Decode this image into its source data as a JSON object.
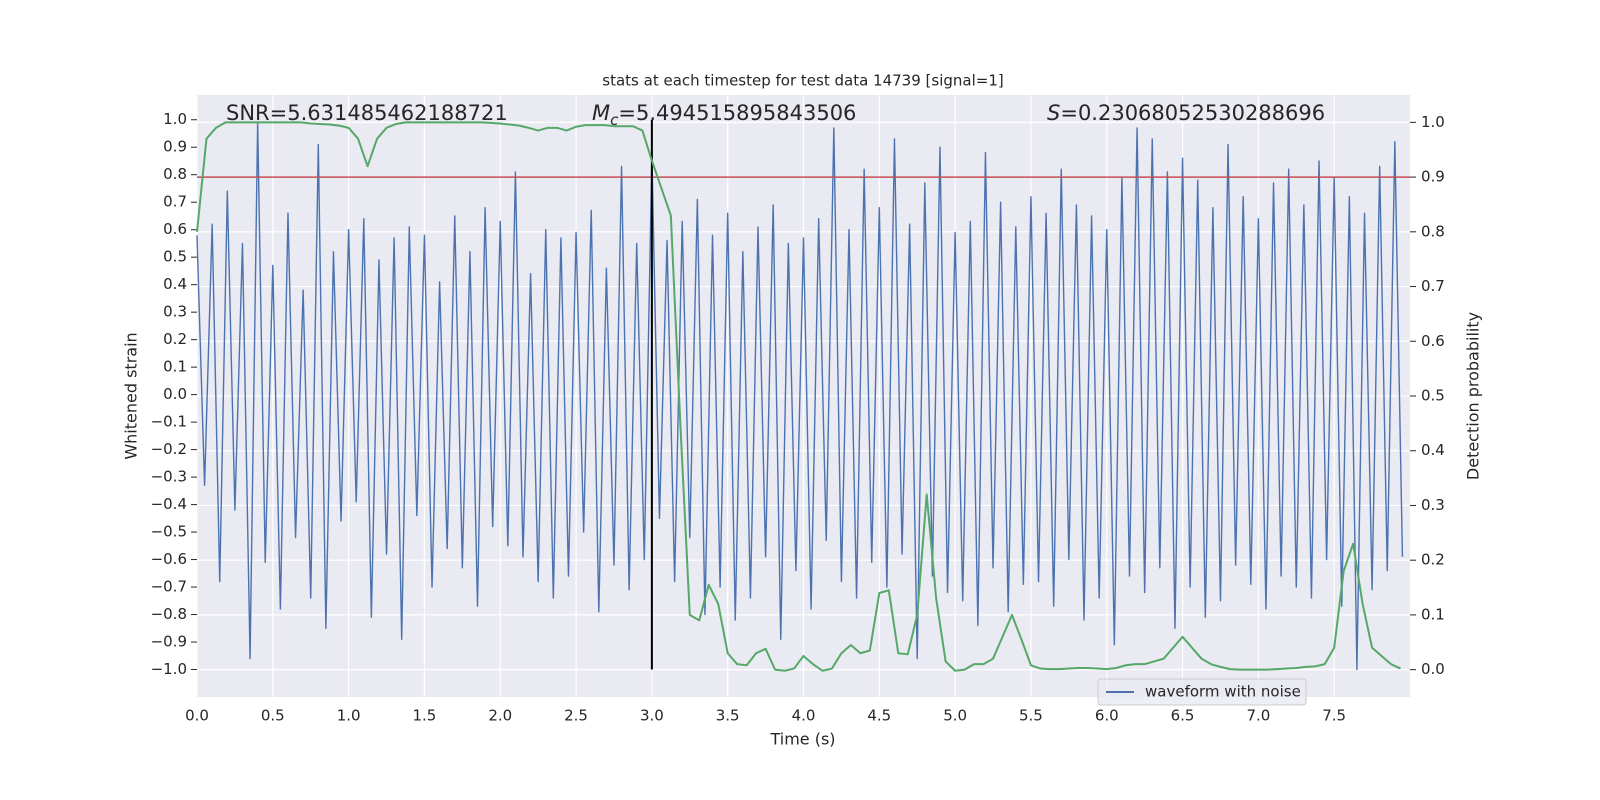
{
  "chart_data": {
    "type": "line",
    "title": "stats at each timestep for test data 14739 [signal=1]",
    "xlabel": "Time (s)",
    "ylabel": "Whitened strain",
    "y2label": "Detection probability",
    "xlim": [
      0,
      8.0
    ],
    "ylim": [
      -1.1,
      1.09
    ],
    "y2lim": [
      -0.05,
      1.05
    ],
    "xticks": [
      {
        "value": 0,
        "label": "0.0"
      },
      0.5,
      {
        "value": 1,
        "label": "1.0"
      },
      1.5,
      {
        "value": 2,
        "label": "2.0"
      },
      2.5,
      {
        "value": 3,
        "label": "3.0"
      },
      3.5,
      {
        "value": 4,
        "label": "4.0"
      },
      4.5,
      {
        "value": 5,
        "label": "5.0"
      },
      5.5,
      {
        "value": 6,
        "label": "6.0"
      },
      6.5,
      {
        "value": 7,
        "label": "7.0"
      },
      7.5
    ],
    "yticks": [
      {
        "value": -1,
        "label": "−1.0"
      },
      {
        "value": -0.9,
        "label": "−0.9"
      },
      {
        "value": -0.8,
        "label": "−0.8"
      },
      {
        "value": -0.7,
        "label": "−0.7"
      },
      {
        "value": -0.6,
        "label": "−0.6"
      },
      {
        "value": -0.5,
        "label": "−0.5"
      },
      {
        "value": -0.4,
        "label": "−0.4"
      },
      {
        "value": -0.3,
        "label": "−0.3"
      },
      {
        "value": -0.2,
        "label": "−0.2"
      },
      {
        "value": -0.1,
        "label": "−0.1"
      },
      {
        "value": 0,
        "label": "0.0"
      },
      0.1,
      0.2,
      0.3,
      0.4,
      0.5,
      0.6,
      0.7,
      0.8,
      0.9,
      {
        "value": 1,
        "label": "1.0"
      }
    ],
    "y2ticks": [
      {
        "value": 0,
        "label": "0.0"
      },
      0.1,
      0.2,
      0.3,
      0.4,
      0.5,
      0.6,
      0.7,
      0.8,
      0.9,
      {
        "value": 1,
        "label": "1.0"
      }
    ],
    "grid": true,
    "background": "#eaeaf2",
    "legend": "lower right",
    "series": [
      {
        "name": "waveform with noise",
        "color": "#4c72b0",
        "x": [
          0,
          0.05,
          0.1,
          0.15,
          0.2,
          0.25,
          0.3,
          0.35,
          0.4,
          0.45,
          0.5,
          0.55,
          0.6,
          0.65,
          0.7,
          0.75,
          0.8,
          0.85,
          0.9,
          0.95,
          1.0,
          1.05,
          1.1,
          1.15,
          1.2,
          1.25,
          1.3,
          1.35,
          1.4,
          1.45,
          1.5,
          1.55,
          1.6,
          1.65,
          1.7,
          1.75,
          1.8,
          1.85,
          1.9,
          1.95,
          2.0,
          2.05,
          2.1,
          2.15,
          2.2,
          2.25,
          2.3,
          2.35,
          2.4,
          2.45,
          2.5,
          2.55,
          2.6,
          2.65,
          2.7,
          2.75,
          2.8,
          2.85,
          2.9,
          2.95,
          3.0,
          3.05,
          3.1,
          3.15,
          3.2,
          3.25,
          3.3,
          3.35,
          3.4,
          3.45,
          3.5,
          3.55,
          3.6,
          3.65,
          3.7,
          3.75,
          3.8,
          3.85,
          3.9,
          3.95,
          4.0,
          4.05,
          4.1,
          4.15,
          4.2,
          4.25,
          4.3,
          4.35,
          4.4,
          4.45,
          4.5,
          4.55,
          4.6,
          4.65,
          4.7,
          4.75,
          4.8,
          4.85,
          4.9,
          4.95,
          5.0,
          5.05,
          5.1,
          5.15,
          5.2,
          5.25,
          5.3,
          5.35,
          5.4,
          5.45,
          5.5,
          5.55,
          5.6,
          5.65,
          5.7,
          5.75,
          5.8,
          5.85,
          5.9,
          5.95,
          6.0,
          6.05,
          6.1,
          6.15,
          6.2,
          6.25,
          6.3,
          6.35,
          6.4,
          6.45,
          6.5,
          6.55,
          6.6,
          6.65,
          6.7,
          6.75,
          6.8,
          6.85,
          6.9,
          6.95,
          7.0,
          7.05,
          7.1,
          7.15,
          7.2,
          7.25,
          7.3,
          7.35,
          7.4,
          7.45,
          7.5,
          7.55,
          7.6,
          7.65,
          7.7,
          7.75,
          7.8,
          7.85,
          7.9,
          7.95
        ],
        "values": [
          0.58,
          -0.33,
          0.62,
          -0.68,
          0.74,
          -0.42,
          0.55,
          -0.96,
          0.99,
          -0.61,
          0.47,
          -0.78,
          0.66,
          -0.52,
          0.38,
          -0.74,
          0.91,
          -0.85,
          0.52,
          -0.46,
          0.6,
          -0.39,
          0.64,
          -0.81,
          0.49,
          -0.58,
          0.57,
          -0.89,
          0.61,
          -0.44,
          0.58,
          -0.7,
          0.41,
          -0.56,
          0.65,
          -0.63,
          0.52,
          -0.77,
          0.68,
          -0.48,
          0.63,
          -0.55,
          0.81,
          -0.59,
          0.44,
          -0.68,
          0.6,
          -0.74,
          0.57,
          -0.66,
          0.59,
          -0.5,
          0.67,
          -0.79,
          0.46,
          -0.62,
          0.83,
          -0.71,
          0.55,
          -0.6,
          0.87,
          -0.45,
          0.56,
          -0.68,
          0.63,
          -0.52,
          0.71,
          -0.8,
          0.58,
          -0.7,
          0.66,
          -0.82,
          0.52,
          -0.74,
          0.61,
          -0.59,
          0.69,
          -0.89,
          0.55,
          -0.64,
          0.57,
          -0.78,
          0.64,
          -0.53,
          0.97,
          -0.68,
          0.6,
          -0.74,
          0.82,
          -0.61,
          0.68,
          -0.7,
          0.93,
          -0.58,
          0.62,
          -0.96,
          0.77,
          -0.66,
          0.9,
          -0.72,
          0.59,
          -0.75,
          0.63,
          -0.84,
          0.88,
          -0.63,
          0.7,
          -0.79,
          0.61,
          -0.69,
          0.72,
          -0.68,
          0.66,
          -0.77,
          0.82,
          -0.6,
          0.69,
          -0.82,
          0.65,
          -0.74,
          0.6,
          -0.91,
          0.79,
          -0.66,
          0.97,
          -0.72,
          0.93,
          -0.63,
          0.81,
          -0.85,
          0.86,
          -0.7,
          0.78,
          -0.81,
          0.68,
          -0.75,
          0.91,
          -0.62,
          0.72,
          -0.69,
          0.64,
          -0.78,
          0.77,
          -0.66,
          0.82,
          -0.7,
          0.69,
          -0.74,
          0.85,
          -0.6,
          0.79,
          -0.77,
          0.72,
          -1.0,
          0.66,
          -0.71,
          0.83,
          -0.64,
          0.92,
          -0.59
        ]
      },
      {
        "color": "#55a868",
        "axis": "y2",
        "x": [
          0,
          0.0625,
          0.125,
          0.1875,
          0.25,
          0.3125,
          0.375,
          0.4375,
          0.5,
          0.5625,
          0.625,
          0.6875,
          0.75,
          0.8125,
          0.875,
          0.9375,
          1.0,
          1.0625,
          1.125,
          1.1875,
          1.25,
          1.3125,
          1.375,
          1.4375,
          1.5,
          1.5625,
          1.625,
          1.6875,
          1.75,
          1.8125,
          1.875,
          1.9375,
          2.0,
          2.0625,
          2.125,
          2.1875,
          2.25,
          2.3125,
          2.375,
          2.4375,
          2.5,
          2.5625,
          2.625,
          2.6875,
          2.75,
          2.8125,
          2.875,
          2.9375,
          3.0,
          3.0625,
          3.125,
          3.1875,
          3.25,
          3.3125,
          3.375,
          3.4375,
          3.5,
          3.5625,
          3.625,
          3.6875,
          3.75,
          3.8125,
          3.875,
          3.9375,
          4.0,
          4.0625,
          4.125,
          4.1875,
          4.25,
          4.3125,
          4.375,
          4.4375,
          4.5,
          4.5625,
          4.625,
          4.6875,
          4.75,
          4.8125,
          4.875,
          4.9375,
          5.0,
          5.0625,
          5.125,
          5.1875,
          5.25,
          5.3125,
          5.375,
          5.4375,
          5.5,
          5.5625,
          5.625,
          5.6875,
          5.75,
          5.8125,
          5.875,
          5.9375,
          6.0,
          6.0625,
          6.125,
          6.1875,
          6.25,
          6.3125,
          6.375,
          6.4375,
          6.5,
          6.5625,
          6.625,
          6.6875,
          6.75,
          6.8125,
          6.875,
          6.9375,
          7.0,
          7.0625,
          7.125,
          7.1875,
          7.25,
          7.3125,
          7.375,
          7.4375,
          7.5,
          7.5625,
          7.625,
          7.6875,
          7.75,
          7.8125,
          7.875,
          7.9375
        ],
        "values": [
          0.8,
          0.97,
          0.99,
          1.0,
          1.0,
          1.0,
          1.0,
          1.0,
          1.0,
          1.0,
          1.0,
          1.0,
          0.998,
          0.997,
          0.996,
          0.994,
          0.99,
          0.97,
          0.92,
          0.97,
          0.99,
          0.997,
          1.0,
          1.0,
          1.0,
          1.0,
          1.0,
          1.0,
          1.0,
          1.0,
          1.0,
          0.999,
          0.998,
          0.996,
          0.994,
          0.99,
          0.985,
          0.99,
          0.99,
          0.985,
          0.992,
          0.995,
          0.995,
          0.995,
          0.993,
          0.993,
          0.993,
          0.985,
          0.93,
          0.88,
          0.83,
          0.45,
          0.1,
          0.09,
          0.155,
          0.12,
          0.03,
          0.01,
          0.008,
          0.03,
          0.038,
          0.0,
          -0.002,
          0.002,
          0.025,
          0.01,
          -0.002,
          0.002,
          0.03,
          0.045,
          0.03,
          0.035,
          0.14,
          0.145,
          0.03,
          0.028,
          0.1,
          0.32,
          0.13,
          0.015,
          -0.002,
          0.0,
          0.01,
          0.01,
          0.02,
          0.06,
          0.1,
          0.055,
          0.008,
          0.002,
          0.001,
          0.001,
          0.002,
          0.003,
          0.003,
          0.002,
          0.001,
          0.003,
          0.008,
          0.01,
          0.01,
          0.015,
          0.02,
          0.04,
          0.06,
          0.04,
          0.02,
          0.01,
          0.005,
          0.001,
          0.0,
          0.0,
          0.0,
          0.0,
          0.001,
          0.002,
          0.003,
          0.005,
          0.006,
          0.01,
          0.04,
          0.18,
          0.23,
          0.12,
          0.04,
          0.025,
          0.01,
          0.002
        ]
      }
    ],
    "hline": {
      "y": 0.9,
      "axis": "y2",
      "color": "#c44e52"
    },
    "vline": {
      "x": 3.0,
      "ymin": -1,
      "ymax": 1,
      "color": "#000000"
    },
    "annotations": [
      {
        "parts": [
          {
            "text": "SNR=5.631485462188721"
          }
        ]
      },
      {
        "parts": [
          {
            "text": "M",
            "style": "italic"
          },
          {
            "text": "c",
            "style": "subscript"
          },
          {
            "text": "=5.494515895843506"
          }
        ]
      },
      {
        "parts": [
          {
            "text": "S",
            "style": "italic"
          },
          {
            "text": "=0.23068052530288696"
          }
        ]
      }
    ]
  }
}
